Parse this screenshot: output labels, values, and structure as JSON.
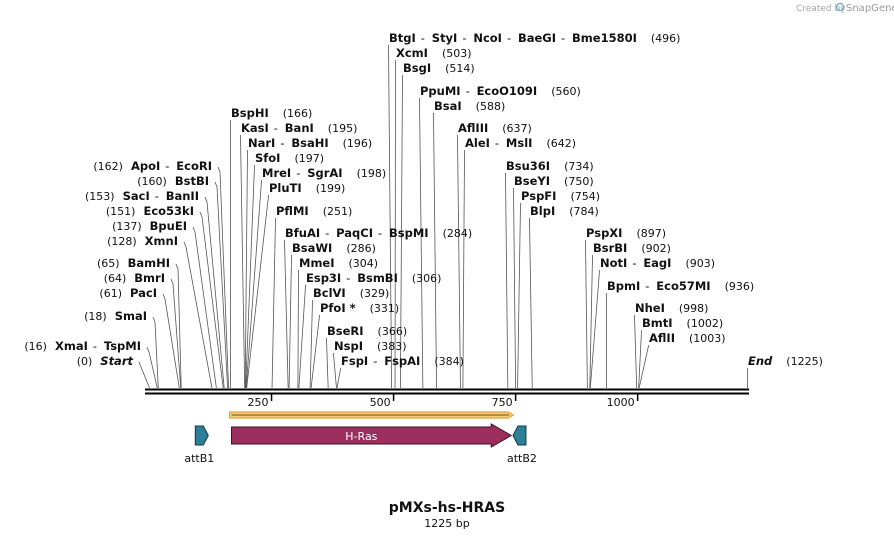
{
  "credit": {
    "prefix": "Created by",
    "brand": "SnapGene"
  },
  "title": "pMXs-hs-HRAS",
  "length_label": "1225 bp",
  "sequence_length": 1225,
  "colors": {
    "backbone": "#000000",
    "hras": "#9b2e5d",
    "att": "#2c7f96",
    "orf": "#e8a23a",
    "leader": "#555555"
  },
  "ticks": [
    {
      "value": 250,
      "label": "250"
    },
    {
      "value": 500,
      "label": "500"
    },
    {
      "value": 750,
      "label": "750"
    },
    {
      "value": 1000,
      "label": "1000"
    }
  ],
  "features": [
    {
      "name": "attB1",
      "start": 90,
      "end": 114,
      "strand": "+",
      "type": "att"
    },
    {
      "name": "H-Ras",
      "start": 168,
      "end": 741,
      "strand": "+",
      "type": "gene"
    },
    {
      "name": "attB2",
      "start": 751,
      "end": 775,
      "strand": "-",
      "type": "att"
    }
  ],
  "orf": {
    "start": 168,
    "end": 741
  },
  "sites": [
    {
      "names": [
        "BtgI",
        "StyI",
        "NcoI",
        "BaeGI",
        "Bme1580I"
      ],
      "pos": 496,
      "side": "right"
    },
    {
      "names": [
        "XcmI"
      ],
      "pos": 503,
      "side": "right"
    },
    {
      "names": [
        "BsgI"
      ],
      "pos": 514,
      "side": "right"
    },
    {
      "names": [
        "PpuMI",
        "EcoO109I"
      ],
      "pos": 560,
      "side": "right"
    },
    {
      "names": [
        "BsaI"
      ],
      "pos": 588,
      "side": "right"
    },
    {
      "names": [
        "AflIII"
      ],
      "pos": 637,
      "side": "right"
    },
    {
      "names": [
        "AleI",
        "MslI"
      ],
      "pos": 642,
      "side": "right"
    },
    {
      "names": [
        "BspHI"
      ],
      "pos": 166,
      "side": "right"
    },
    {
      "names": [
        "KasI",
        "BanI"
      ],
      "pos": 195,
      "side": "right"
    },
    {
      "names": [
        "NarI",
        "BsaHI"
      ],
      "pos": 196,
      "side": "right"
    },
    {
      "names": [
        "SfoI"
      ],
      "pos": 197,
      "side": "right"
    },
    {
      "names": [
        "MreI",
        "SgrAI"
      ],
      "pos": 198,
      "side": "right"
    },
    {
      "names": [
        "PluTI"
      ],
      "pos": 199,
      "side": "right"
    },
    {
      "names": [
        "PflMI"
      ],
      "pos": 251,
      "side": "right"
    },
    {
      "names": [
        "BfuAI",
        "PaqCI",
        "BspMI"
      ],
      "pos": 284,
      "side": "right"
    },
    {
      "names": [
        "BsaWI"
      ],
      "pos": 286,
      "side": "right"
    },
    {
      "names": [
        "MmeI"
      ],
      "pos": 304,
      "side": "right"
    },
    {
      "names": [
        "Esp3I",
        "BsmBI"
      ],
      "pos": 306,
      "side": "right"
    },
    {
      "names": [
        "BclVI"
      ],
      "pos": 329,
      "side": "right"
    },
    {
      "names": [
        "PfoI *"
      ],
      "pos": 331,
      "side": "right"
    },
    {
      "names": [
        "BseRI"
      ],
      "pos": 366,
      "side": "right"
    },
    {
      "names": [
        "NspI"
      ],
      "pos": 383,
      "side": "right"
    },
    {
      "names": [
        "FspI",
        "FspAI"
      ],
      "pos": 384,
      "side": "right"
    },
    {
      "names": [
        "Bsu36I"
      ],
      "pos": 734,
      "side": "right"
    },
    {
      "names": [
        "BseYI"
      ],
      "pos": 750,
      "side": "right"
    },
    {
      "names": [
        "PspFI"
      ],
      "pos": 754,
      "side": "right"
    },
    {
      "names": [
        "BlpI"
      ],
      "pos": 784,
      "side": "right"
    },
    {
      "names": [
        "PspXI"
      ],
      "pos": 897,
      "side": "right"
    },
    {
      "names": [
        "BsrBI"
      ],
      "pos": 902,
      "side": "right"
    },
    {
      "names": [
        "NotI",
        "EagI"
      ],
      "pos": 903,
      "side": "right"
    },
    {
      "names": [
        "BpmI",
        "Eco57MI"
      ],
      "pos": 936,
      "side": "right"
    },
    {
      "names": [
        "NheI"
      ],
      "pos": 998,
      "side": "right"
    },
    {
      "names": [
        "BmtI"
      ],
      "pos": 1002,
      "side": "right"
    },
    {
      "names": [
        "AflII"
      ],
      "pos": 1003,
      "side": "right"
    },
    {
      "names": [
        "End"
      ],
      "pos": 1225,
      "side": "right",
      "special": true
    },
    {
      "names": [
        "ApoI",
        "EcoRI"
      ],
      "pos": 162,
      "side": "left"
    },
    {
      "names": [
        "BstBI"
      ],
      "pos": 160,
      "side": "left"
    },
    {
      "names": [
        "SacI",
        "BanII"
      ],
      "pos": 153,
      "side": "left"
    },
    {
      "names": [
        "Eco53kI"
      ],
      "pos": 151,
      "side": "left"
    },
    {
      "names": [
        "BpuEI"
      ],
      "pos": 137,
      "side": "left"
    },
    {
      "names": [
        "XmnI"
      ],
      "pos": 128,
      "side": "left"
    },
    {
      "names": [
        "BamHI"
      ],
      "pos": 65,
      "side": "left"
    },
    {
      "names": [
        "BmrI"
      ],
      "pos": 64,
      "side": "left"
    },
    {
      "names": [
        "PacI"
      ],
      "pos": 61,
      "side": "left"
    },
    {
      "names": [
        "SmaI"
      ],
      "pos": 18,
      "side": "left"
    },
    {
      "names": [
        "XmaI",
        "TspMI"
      ],
      "pos": 16,
      "side": "left"
    },
    {
      "names": [
        "Start"
      ],
      "pos": 0,
      "side": "left",
      "special": true
    }
  ]
}
